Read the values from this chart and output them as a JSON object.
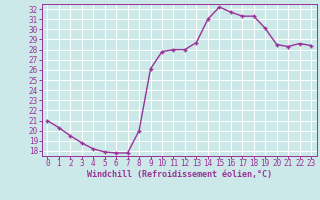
{
  "x": [
    0,
    1,
    2,
    3,
    4,
    5,
    6,
    7,
    8,
    9,
    10,
    11,
    12,
    13,
    14,
    15,
    16,
    17,
    18,
    19,
    20,
    21,
    22,
    23
  ],
  "y": [
    21.0,
    20.3,
    19.5,
    18.8,
    18.2,
    17.9,
    17.8,
    17.8,
    20.0,
    26.1,
    27.8,
    28.0,
    28.0,
    28.7,
    31.0,
    32.2,
    31.7,
    31.3,
    31.3,
    30.1,
    28.5,
    28.3,
    28.6,
    28.4
  ],
  "line_color": "#993399",
  "marker": "+",
  "marker_color": "#993399",
  "bg_color": "#cce8e8",
  "grid_color": "#ffffff",
  "xlabel": "Windchill (Refroidissement éolien,°C)",
  "xlabel_color": "#993399",
  "tick_color": "#993399",
  "spine_color": "#993399",
  "ylim": [
    17.5,
    32.5
  ],
  "xlim": [
    -0.5,
    23.5
  ],
  "yticks": [
    18,
    19,
    20,
    21,
    22,
    23,
    24,
    25,
    26,
    27,
    28,
    29,
    30,
    31,
    32
  ],
  "xticks": [
    0,
    1,
    2,
    3,
    4,
    5,
    6,
    7,
    8,
    9,
    10,
    11,
    12,
    13,
    14,
    15,
    16,
    17,
    18,
    19,
    20,
    21,
    22,
    23
  ],
  "label_fontsize": 6.0,
  "tick_fontsize": 5.5,
  "line_width": 1.0,
  "marker_size": 3.5
}
